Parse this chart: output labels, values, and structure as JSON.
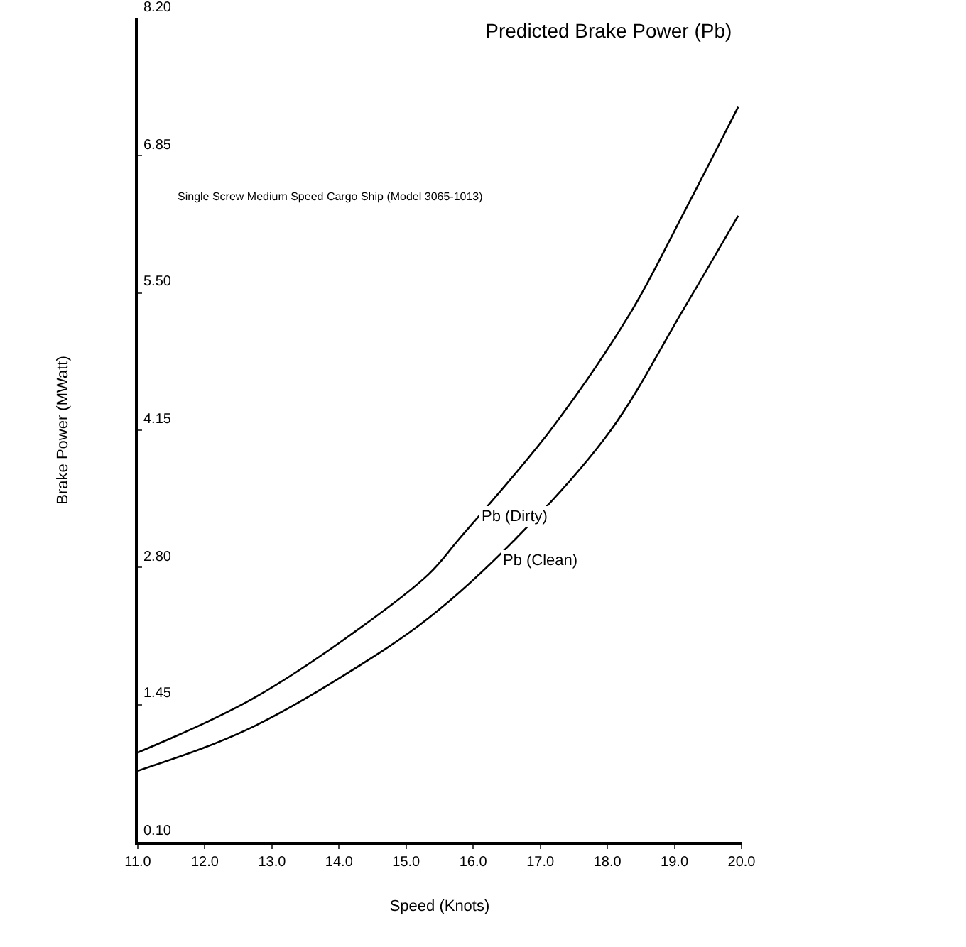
{
  "chart_data": {
    "type": "line",
    "title": "Predicted Brake Power (Pb)",
    "subtitle": "Single Screw Medium Speed Cargo Ship (Model 3065-1013)",
    "xlabel": "Speed (Knots)",
    "ylabel": "Brake Power (MWatt)",
    "xlim": [
      11.0,
      20.0
    ],
    "xticks": [
      {
        "value": 11,
        "label": "11.0"
      },
      {
        "value": 12,
        "label": "12.0"
      },
      {
        "value": 13,
        "label": "13.0"
      },
      {
        "value": 14,
        "label": "14.0"
      },
      {
        "value": 15,
        "label": "15.0"
      },
      {
        "value": 16,
        "label": "16.0"
      },
      {
        "value": 17,
        "label": "17.0"
      },
      {
        "value": 18,
        "label": "18.0"
      },
      {
        "value": 19,
        "label": "19.0"
      },
      {
        "value": 20,
        "label": "20.0"
      }
    ],
    "ylim": [
      0.1,
      8.2
    ],
    "yticks": [
      {
        "value": 0.1,
        "label": "0.10"
      },
      1.45,
      {
        "value": 2.8,
        "label": "2.80"
      },
      4.15,
      {
        "value": 5.5,
        "label": "5.50"
      },
      6.85,
      {
        "value": 8.2,
        "label": "8.20"
      }
    ],
    "marker": "none",
    "line_style": "solid",
    "series": [
      {
        "color": "#000000",
        "x": [
          11.0,
          12.0,
          12.77,
          14.05,
          15.33,
          15.79,
          17.14,
          18.34,
          19.14,
          19.95
        ],
        "values": [
          0.98,
          1.27,
          1.53,
          2.08,
          2.73,
          3.08,
          4.14,
          5.3,
          6.29,
          7.33
        ]
      },
      {
        "color": "#000000",
        "x": [
          11.0,
          12.0,
          12.77,
          14.05,
          15.33,
          16.63,
          18.04,
          19.1,
          19.95
        ],
        "values": [
          0.8,
          1.03,
          1.25,
          1.73,
          2.3,
          3.08,
          4.14,
          5.3,
          6.26
        ]
      }
    ],
    "annotations": [
      "Pb (Dirty)",
      "Pb (Clean)"
    ]
  }
}
